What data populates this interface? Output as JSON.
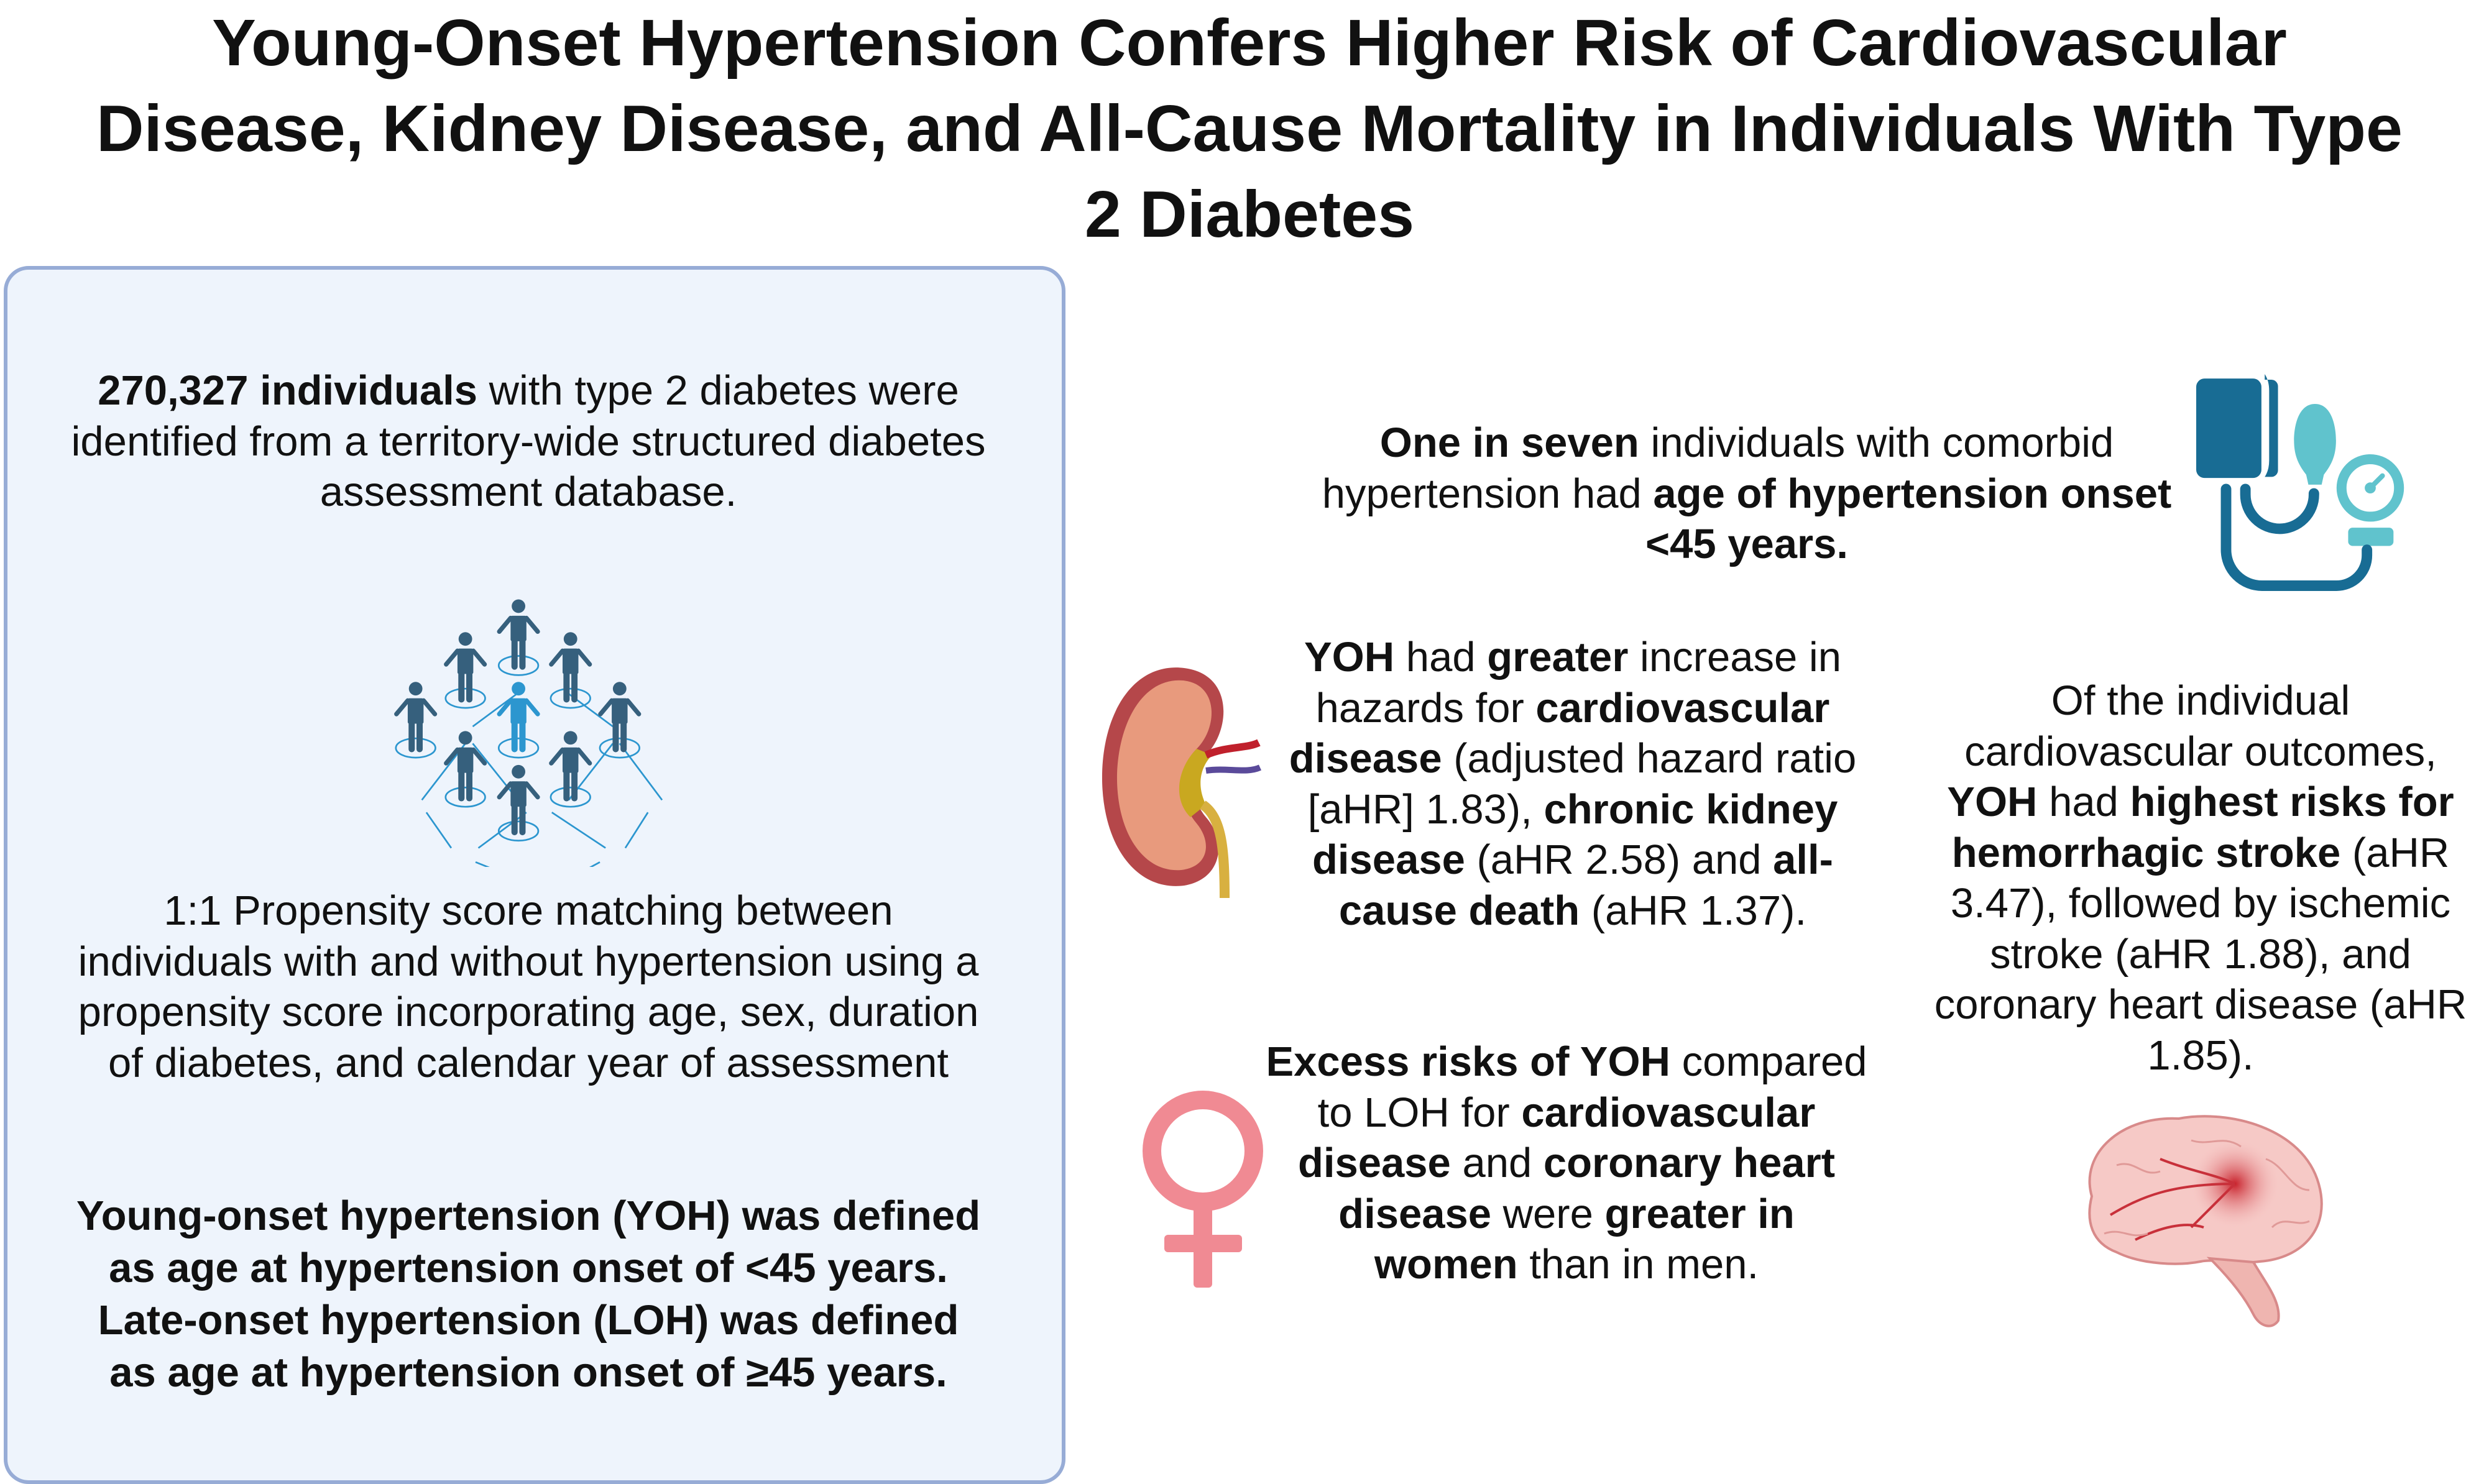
{
  "title": "Young-Onset Hypertension Confers Higher Risk of Cardiovascular Disease, Kidney Disease, and All-Cause Mortality in Individuals With Type 2 Diabetes",
  "left_panel": {
    "cohort": [
      {
        "text": "270,327  individuals",
        "bold": true
      },
      {
        "text": " with type 2 diabetes were identified from a territory-wide structured diabetes assessment database.",
        "bold": false
      }
    ],
    "matching": "1:1 Propensity score matching between individuals with and without hypertension using a propensity score incorporating age, sex, duration of diabetes, and calendar year of assessment",
    "definitions": "Young-onset hypertension (YOH) was defined as age at hypertension onset of <45 years. Late-onset hypertension (LOH) was defined as age at hypertension onset of ≥45 years."
  },
  "findings": {
    "prevalence": [
      {
        "text": "One in seven",
        "bold": true
      },
      {
        "text": " individuals with comorbid hypertension had ",
        "bold": false
      },
      {
        "text": "age of hypertension onset <45 years.",
        "bold": true
      }
    ],
    "hazards": [
      {
        "text": "YOH",
        "bold": true
      },
      {
        "text": " had ",
        "bold": false
      },
      {
        "text": "greater",
        "bold": true
      },
      {
        "text": " increase in hazards for ",
        "bold": false
      },
      {
        "text": "cardiovascular disease",
        "bold": true
      },
      {
        "text": " (adjusted hazard ratio [aHR] 1.83), ",
        "bold": false
      },
      {
        "text": "chronic kidney disease",
        "bold": true
      },
      {
        "text": " (aHR 2.58) and ",
        "bold": false
      },
      {
        "text": "all-cause death",
        "bold": true
      },
      {
        "text": " (aHR 1.37).",
        "bold": false
      }
    ],
    "individual_outcomes": [
      {
        "text": "Of the individual cardiovascular outcomes, ",
        "bold": false
      },
      {
        "text": "YOH",
        "bold": true
      },
      {
        "text": " had ",
        "bold": false
      },
      {
        "text": "highest risks for hemorrhagic stroke",
        "bold": true
      },
      {
        "text": " (aHR 3.47), followed by ischemic stroke (aHR 1.88), and coronary heart disease (aHR 1.85).",
        "bold": false
      }
    ],
    "sex_difference": [
      {
        "text": "Excess risks of YOH",
        "bold": true
      },
      {
        "text": " compared to LOH for ",
        "bold": false
      },
      {
        "text": "cardiovascular disease",
        "bold": true
      },
      {
        "text": " and ",
        "bold": false
      },
      {
        "text": "coronary heart disease",
        "bold": true
      },
      {
        "text": " were ",
        "bold": false
      },
      {
        "text": "greater in women",
        "bold": true
      },
      {
        "text": " than in men.",
        "bold": false
      }
    ]
  },
  "icons": [
    "people-network-icon",
    "blood-pressure-monitor-icon",
    "kidney-icon",
    "female-symbol-icon",
    "brain-icon"
  ],
  "colors": {
    "panel_bg": "#eef4fc",
    "panel_border": "#97acd6",
    "person_dark": "#36607d",
    "person_highlight": "#2c96cf",
    "bp_dark": "#186c94",
    "bp_light": "#60c3cd",
    "female": "#f08a93"
  }
}
